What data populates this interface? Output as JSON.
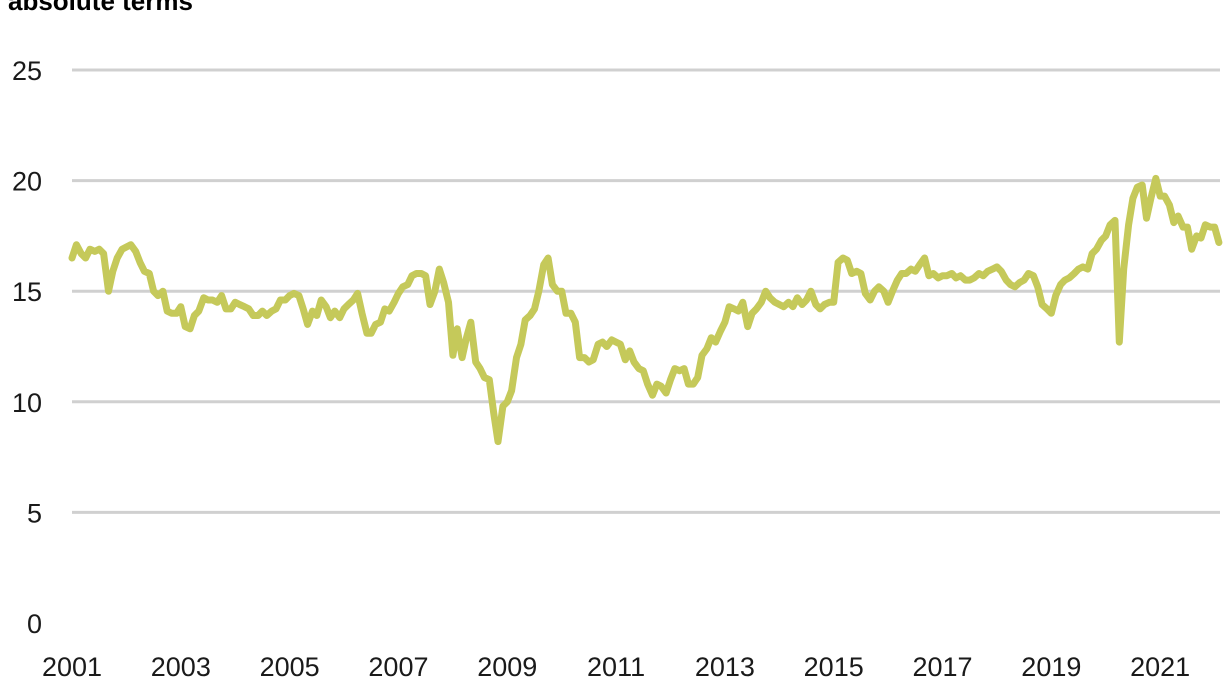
{
  "chart_data": {
    "type": "line",
    "title": "absolute terms",
    "xlabel": "",
    "ylabel": "",
    "ylim": [
      0,
      25
    ],
    "xlim": [
      2001,
      2022.1
    ],
    "yticks": [
      "0",
      "5",
      "10",
      "15",
      "20",
      "25"
    ],
    "xticks": [
      "2001",
      "2003",
      "2005",
      "2007",
      "2009",
      "2011",
      "2013",
      "2015",
      "2017",
      "2019",
      "2021"
    ],
    "grid": true,
    "line_color": "#c5c95a",
    "series": [
      {
        "x": [
          2001.0,
          2001.08,
          2001.17,
          2001.25,
          2001.33,
          2001.42,
          2001.5,
          2001.58,
          2001.67,
          2001.75,
          2001.83,
          2001.92,
          2002.0,
          2002.08,
          2002.17,
          2002.25,
          2002.33,
          2002.42,
          2002.5,
          2002.58,
          2002.67,
          2002.75,
          2002.83,
          2002.92,
          2003.0,
          2003.08,
          2003.17,
          2003.25,
          2003.33,
          2003.42,
          2003.5,
          2003.58,
          2003.67,
          2003.75,
          2003.83,
          2003.92,
          2004.0,
          2004.08,
          2004.17,
          2004.25,
          2004.33,
          2004.42,
          2004.5,
          2004.58,
          2004.67,
          2004.75,
          2004.83,
          2004.92,
          2005.0,
          2005.08,
          2005.17,
          2005.25,
          2005.33,
          2005.42,
          2005.5,
          2005.58,
          2005.67,
          2005.75,
          2005.83,
          2005.92,
          2006.0,
          2006.08,
          2006.17,
          2006.25,
          2006.33,
          2006.42,
          2006.5,
          2006.58,
          2006.67,
          2006.75,
          2006.83,
          2006.92,
          2007.0,
          2007.08,
          2007.17,
          2007.25,
          2007.33,
          2007.42,
          2007.5,
          2007.58,
          2007.67,
          2007.75,
          2007.83,
          2007.92,
          2008.0,
          2008.08,
          2008.17,
          2008.25,
          2008.33,
          2008.42,
          2008.5,
          2008.58,
          2008.67,
          2008.75,
          2008.83,
          2008.92,
          2009.0,
          2009.08,
          2009.17,
          2009.25,
          2009.33,
          2009.42,
          2009.5,
          2009.58,
          2009.67,
          2009.75,
          2009.83,
          2009.92,
          2010.0,
          2010.08,
          2010.17,
          2010.25,
          2010.33,
          2010.42,
          2010.5,
          2010.58,
          2010.67,
          2010.75,
          2010.83,
          2010.92,
          2011.0,
          2011.08,
          2011.17,
          2011.25,
          2011.33,
          2011.42,
          2011.5,
          2011.58,
          2011.67,
          2011.75,
          2011.83,
          2011.92,
          2012.0,
          2012.08,
          2012.17,
          2012.25,
          2012.33,
          2012.42,
          2012.5,
          2012.58,
          2012.67,
          2012.75,
          2012.83,
          2012.92,
          2013.0,
          2013.08,
          2013.17,
          2013.25,
          2013.33,
          2013.42,
          2013.5,
          2013.58,
          2013.67,
          2013.75,
          2013.83,
          2013.92,
          2014.0,
          2014.08,
          2014.17,
          2014.25,
          2014.33,
          2014.42,
          2014.5,
          2014.58,
          2014.67,
          2014.75,
          2014.83,
          2014.92,
          2015.0,
          2015.08,
          2015.17,
          2015.25,
          2015.33,
          2015.42,
          2015.5,
          2015.58,
          2015.67,
          2015.75,
          2015.83,
          2015.92,
          2016.0,
          2016.08,
          2016.17,
          2016.25,
          2016.33,
          2016.42,
          2016.5,
          2016.58,
          2016.67,
          2016.75,
          2016.83,
          2016.92,
          2017.0,
          2017.08,
          2017.17,
          2017.25,
          2017.33,
          2017.42,
          2017.5,
          2017.58,
          2017.67,
          2017.75,
          2017.83,
          2017.92,
          2018.0,
          2018.08,
          2018.17,
          2018.25,
          2018.33,
          2018.42,
          2018.5,
          2018.58,
          2018.67,
          2018.75,
          2018.83,
          2018.92,
          2019.0,
          2019.08,
          2019.17,
          2019.25,
          2019.33,
          2019.42,
          2019.5,
          2019.58,
          2019.67,
          2019.75,
          2019.83,
          2019.92,
          2020.0,
          2020.08,
          2020.17,
          2020.25,
          2020.33,
          2020.42,
          2020.5,
          2020.58,
          2020.67,
          2020.75,
          2020.83,
          2020.92,
          2021.0,
          2021.08,
          2021.17,
          2021.25,
          2021.33,
          2021.42,
          2021.5,
          2021.58,
          2021.67,
          2021.75,
          2021.83,
          2021.92,
          2022.0,
          2022.08
        ],
        "values": [
          16.5,
          17.1,
          16.7,
          16.5,
          16.9,
          16.8,
          16.9,
          16.7,
          15.0,
          15.9,
          16.5,
          16.9,
          17.0,
          17.1,
          16.8,
          16.3,
          15.9,
          15.8,
          15.0,
          14.8,
          15.0,
          14.1,
          14.0,
          14.0,
          14.3,
          13.4,
          13.3,
          13.9,
          14.1,
          14.7,
          14.6,
          14.6,
          14.5,
          14.8,
          14.2,
          14.2,
          14.5,
          14.4,
          14.3,
          14.2,
          13.9,
          13.9,
          14.1,
          13.9,
          14.1,
          14.2,
          14.6,
          14.6,
          14.8,
          14.9,
          14.8,
          14.2,
          13.5,
          14.1,
          13.9,
          14.6,
          14.3,
          13.8,
          14.1,
          13.8,
          14.2,
          14.4,
          14.6,
          14.9,
          14.0,
          13.1,
          13.1,
          13.5,
          13.6,
          14.2,
          14.1,
          14.5,
          14.9,
          15.2,
          15.3,
          15.7,
          15.8,
          15.8,
          15.7,
          14.4,
          15.0,
          16.0,
          15.4,
          14.5,
          12.1,
          13.3,
          12.0,
          12.9,
          13.6,
          11.8,
          11.5,
          11.1,
          11.0,
          9.5,
          8.2,
          9.8,
          10.0,
          10.5,
          12.0,
          12.6,
          13.7,
          13.9,
          14.2,
          15.0,
          16.2,
          16.5,
          15.3,
          15.0,
          15.0,
          14.0,
          14.0,
          13.6,
          12.0,
          12.0,
          11.8,
          11.9,
          12.6,
          12.7,
          12.5,
          12.8,
          12.7,
          12.6,
          11.9,
          12.3,
          11.8,
          11.5,
          11.4,
          10.8,
          10.3,
          10.8,
          10.7,
          10.4,
          11.0,
          11.5,
          11.4,
          11.5,
          10.8,
          10.8,
          11.1,
          12.1,
          12.4,
          12.9,
          12.7,
          13.2,
          13.6,
          14.3,
          14.2,
          14.1,
          14.5,
          13.4,
          14.0,
          14.2,
          14.5,
          15.0,
          14.7,
          14.5,
          14.4,
          14.3,
          14.5,
          14.3,
          14.7,
          14.4,
          14.6,
          15.0,
          14.4,
          14.2,
          14.4,
          14.5,
          14.5,
          16.3,
          16.5,
          16.4,
          15.8,
          15.9,
          15.8,
          14.9,
          14.6,
          15.0,
          15.2,
          15.0,
          14.5,
          15.0,
          15.5,
          15.8,
          15.8,
          16.0,
          15.9,
          16.2,
          16.5,
          15.7,
          15.8,
          15.6,
          15.7,
          15.7,
          15.8,
          15.6,
          15.7,
          15.5,
          15.5,
          15.6,
          15.8,
          15.7,
          15.9,
          16.0,
          16.1,
          15.9,
          15.5,
          15.3,
          15.2,
          15.4,
          15.5,
          15.8,
          15.7,
          15.2,
          14.4,
          14.2,
          14.0,
          14.8,
          15.3,
          15.5,
          15.6,
          15.8,
          16.0,
          16.1,
          16.0,
          16.7,
          16.9,
          17.3,
          17.5,
          18.0,
          18.2,
          12.7,
          16.0,
          18.0,
          19.2,
          19.7,
          19.8,
          18.3,
          19.2,
          20.1,
          19.3,
          19.3,
          18.9,
          18.1,
          18.4,
          17.9,
          17.9,
          16.9,
          17.5,
          17.4,
          18.0,
          17.9,
          17.9,
          17.2
        ]
      }
    ]
  }
}
